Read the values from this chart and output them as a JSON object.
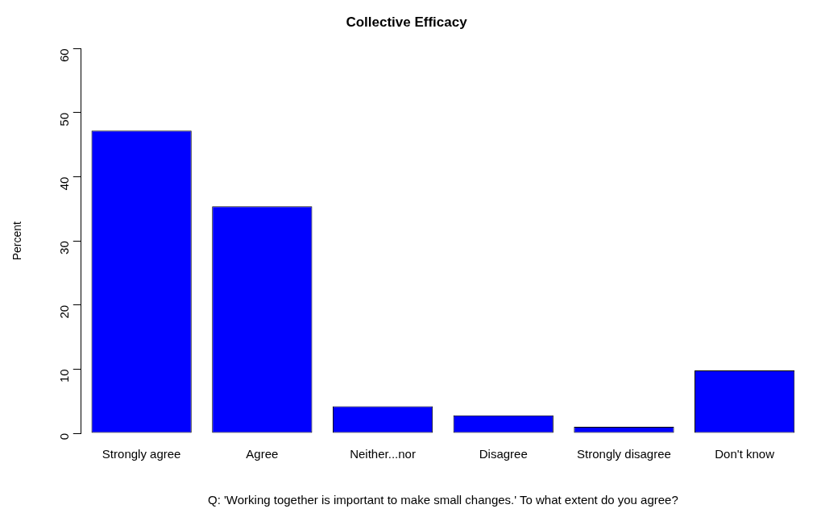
{
  "chart_data": {
    "type": "bar",
    "title": "Collective Efficacy",
    "ylabel": "Percent",
    "categories": [
      "Strongly agree",
      "Agree",
      "Neither...nor",
      "Disagree",
      "Strongly disagree",
      "Don't know"
    ],
    "values": [
      47.2,
      35.4,
      4.2,
      2.8,
      1.0,
      9.8
    ],
    "color": "#0000ff",
    "ylim": [
      0,
      60
    ],
    "yticks": [
      0,
      10,
      20,
      30,
      40,
      50,
      60
    ],
    "grid": false,
    "legend": false,
    "annotations": [
      "Q: 'Working together is important to make small changes.' To what extent do you agree?"
    ]
  }
}
